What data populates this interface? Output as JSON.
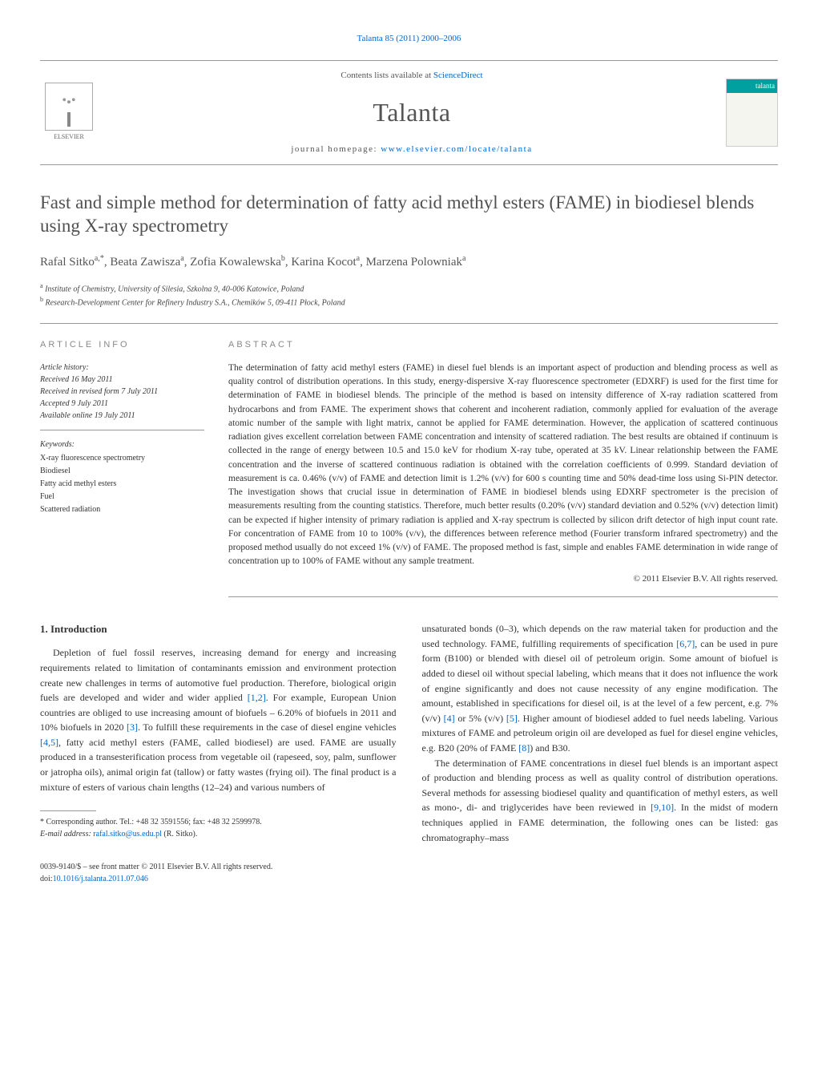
{
  "journal_ref": {
    "prefix": "Talanta 85 (2011) 2000–2006",
    "link_text": "Talanta 85 (2011) 2000–2006"
  },
  "header": {
    "contents_prefix": "Contents lists available at ",
    "contents_link": "ScienceDirect",
    "journal_name": "Talanta",
    "homepage_prefix": "journal homepage: ",
    "homepage_link": "www.elsevier.com/locate/talanta",
    "publisher": "ELSEVIER",
    "cover_brand": "talanta"
  },
  "article": {
    "title": "Fast and simple method for determination of fatty acid methyl esters (FAME) in biodiesel blends using X-ray spectrometry",
    "authors_html": "Rafal Sitko<sup>a,*</sup>, Beata Zawisza<sup>a</sup>, Zofia Kowalewska<sup>b</sup>, Karina Kocot<sup>a</sup>, Marzena Polowniak<sup>a</sup>",
    "affiliations": {
      "a": "Institute of Chemistry, University of Silesia, Szkolna 9, 40-006 Katowice, Poland",
      "b": "Research-Development Center for Refinery Industry S.A., Chemików 5, 09-411 Płock, Poland"
    }
  },
  "article_info": {
    "header": "article info",
    "history_label": "Article history:",
    "received": "Received 16 May 2011",
    "revised": "Received in revised form 7 July 2011",
    "accepted": "Accepted 9 July 2011",
    "online": "Available online 19 July 2011",
    "keywords_label": "Keywords:",
    "keywords": [
      "X-ray fluorescence spectrometry",
      "Biodiesel",
      "Fatty acid methyl esters",
      "Fuel",
      "Scattered radiation"
    ]
  },
  "abstract": {
    "header": "abstract",
    "text": "The determination of fatty acid methyl esters (FAME) in diesel fuel blends is an important aspect of production and blending process as well as quality control of distribution operations. In this study, energy-dispersive X-ray fluorescence spectrometer (EDXRF) is used for the first time for determination of FAME in biodiesel blends. The principle of the method is based on intensity difference of X-ray radiation scattered from hydrocarbons and from FAME. The experiment shows that coherent and incoherent radiation, commonly applied for evaluation of the average atomic number of the sample with light matrix, cannot be applied for FAME determination. However, the application of scattered continuous radiation gives excellent correlation between FAME concentration and intensity of scattered radiation. The best results are obtained if continuum is collected in the range of energy between 10.5 and 15.0 keV for rhodium X-ray tube, operated at 35 kV. Linear relationship between the FAME concentration and the inverse of scattered continuous radiation is obtained with the correlation coefficients of 0.999. Standard deviation of measurement is ca. 0.46% (v/v) of FAME and detection limit is 1.2% (v/v) for 600 s counting time and 50% dead-time loss using Si-PIN detector. The investigation shows that crucial issue in determination of FAME in biodiesel blends using EDXRF spectrometer is the precision of measurements resulting from the counting statistics. Therefore, much better results (0.20% (v/v) standard deviation and 0.52% (v/v) detection limit) can be expected if higher intensity of primary radiation is applied and X-ray spectrum is collected by silicon drift detector of high input count rate. For concentration of FAME from 10 to 100% (v/v), the differences between reference method (Fourier transform infrared spectrometry) and the proposed method usually do not exceed 1% (v/v) of FAME. The proposed method is fast, simple and enables FAME determination in wide range of concentration up to 100% of FAME without any sample treatment.",
    "copyright": "© 2011 Elsevier B.V. All rights reserved."
  },
  "body": {
    "heading": "1. Introduction",
    "col1_para": "Depletion of fuel fossil reserves, increasing demand for energy and increasing requirements related to limitation of contaminants emission and environment protection create new challenges in terms of automotive fuel production. Therefore, biological origin fuels are developed and wider and wider applied [1,2]. For example, European Union countries are obliged to use increasing amount of biofuels – 6.20% of biofuels in 2011 and 10% biofuels in 2020 [3]. To fulfill these requirements in the case of diesel engine vehicles [4,5], fatty acid methyl esters (FAME, called biodiesel) are used. FAME are usually produced in a transesterification process from vegetable oil (rapeseed, soy, palm, sunflower or jatropha oils), animal origin fat (tallow) or fatty wastes (frying oil). The final product is a mixture of esters of various chain lengths (12–24) and various numbers of",
    "col2_para1": "unsaturated bonds (0–3), which depends on the raw material taken for production and the used technology. FAME, fulfilling requirements of specification [6,7], can be used in pure form (B100) or blended with diesel oil of petroleum origin. Some amount of biofuel is added to diesel oil without special labeling, which means that it does not influence the work of engine significantly and does not cause necessity of any engine modification. The amount, established in specifications for diesel oil, is at the level of a few percent, e.g. 7% (v/v) [4] or 5% (v/v) [5]. Higher amount of biodiesel added to fuel needs labeling. Various mixtures of FAME and petroleum origin oil are developed as fuel for diesel engine vehicles, e.g. B20 (20% of FAME [8]) and B30.",
    "col2_para2": "The determination of FAME concentrations in diesel fuel blends is an important aspect of production and blending process as well as quality control of distribution operations. Several methods for assessing biodiesel quality and quantification of methyl esters, as well as mono-, di- and triglycerides have been reviewed in [9,10]. In the midst of modern techniques applied in FAME determination, the following ones can be listed: gas chromatography–mass",
    "refs": {
      "r12": "[1,2]",
      "r3": "[3]",
      "r45": "[4,5]",
      "r67": "[6,7]",
      "r4": "[4]",
      "r5": "[5]",
      "r8": "[8]",
      "r910": "[9,10]"
    }
  },
  "footnote": {
    "marker": "*",
    "text": "Corresponding author. Tel.: +48 32 3591556; fax: +48 32 2599978.",
    "email_label": "E-mail address:",
    "email": "rafal.sitko@us.edu.pl",
    "email_suffix": "(R. Sitko)."
  },
  "footer": {
    "issn": "0039-9140/$ – see front matter © 2011 Elsevier B.V. All rights reserved.",
    "doi_label": "doi:",
    "doi": "10.1016/j.talanta.2011.07.046"
  },
  "colors": {
    "link": "#0066cc",
    "text": "#333333",
    "heading": "#505050",
    "rule": "#999999",
    "brand_teal": "#00a0a0"
  },
  "typography": {
    "body_pt": 12,
    "title_pt": 23,
    "journal_name_pt": 32,
    "abstract_pt": 11.5,
    "small_pt": 10
  }
}
